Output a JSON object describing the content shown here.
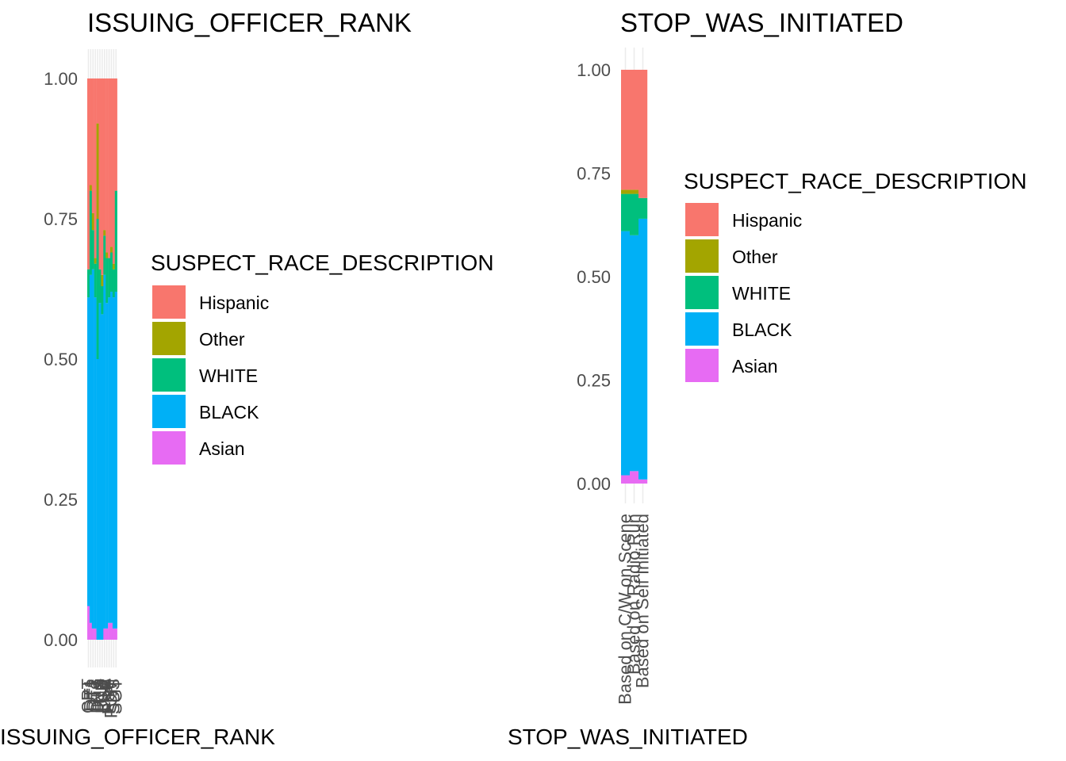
{
  "legend": {
    "title": "SUSPECT_RACE_DESCRIPTION",
    "entries": [
      {
        "label": "Hispanic",
        "color": "#F8766D"
      },
      {
        "label": "Other",
        "color": "#A3A500"
      },
      {
        "label": "WHITE",
        "color": "#00BF7D"
      },
      {
        "label": "BLACK",
        "color": "#00B0F6"
      },
      {
        "label": "Asian",
        "color": "#E76BF3"
      }
    ]
  },
  "chart_data": [
    {
      "type": "bar",
      "stacked": "fill",
      "title": "ISSUING_OFFICER_RANK",
      "xlabel": "ISSUING_OFFICER_RANK",
      "ylabel": "",
      "ylim": [
        0,
        1
      ],
      "yticks": [
        "0.00",
        "0.25",
        "0.50",
        "0.75",
        "1.00"
      ],
      "grid": true,
      "legend_position": "right",
      "categories": [
        "CPT",
        "DT1",
        "DT2",
        "DT3",
        "DTS",
        "INS",
        "LCD",
        "LSA",
        "LT",
        "POF",
        "POM",
        "SDS",
        "SGT"
      ],
      "series": [
        {
          "name": "Asian",
          "values": [
            0.06,
            0.03,
            0.02,
            0.02,
            0.0,
            0.0,
            0.0,
            0.02,
            0.02,
            0.03,
            0.03,
            0.02,
            0.02
          ]
        },
        {
          "name": "BLACK",
          "values": [
            0.55,
            0.62,
            0.64,
            0.59,
            0.5,
            0.6,
            0.58,
            0.63,
            0.58,
            0.58,
            0.59,
            0.59,
            0.6
          ]
        },
        {
          "name": "WHITE",
          "values": [
            0.05,
            0.15,
            0.07,
            0.06,
            0.25,
            0.06,
            0.05,
            0.07,
            0.08,
            0.07,
            0.07,
            0.05,
            0.18
          ]
        },
        {
          "name": "Other",
          "values": [
            0.0,
            0.01,
            0.03,
            0.01,
            0.17,
            0.0,
            0.02,
            0.01,
            0.01,
            0.0,
            0.01,
            0.01,
            0.0
          ]
        },
        {
          "name": "Hispanic",
          "values": [
            0.34,
            0.19,
            0.24,
            0.32,
            0.08,
            0.34,
            0.35,
            0.27,
            0.31,
            0.32,
            0.3,
            0.33,
            0.2
          ]
        }
      ]
    },
    {
      "type": "bar",
      "stacked": "fill",
      "title": "STOP_WAS_INITIATED",
      "xlabel": "STOP_WAS_INITIATED",
      "ylabel": "",
      "ylim": [
        0,
        1
      ],
      "yticks": [
        "0.00",
        "0.25",
        "0.50",
        "0.75",
        "1.00"
      ],
      "grid": true,
      "legend_position": "right",
      "categories": [
        "Based on C/W on Scene",
        "Based on Radio Run",
        "Based on Self Initiated"
      ],
      "series": [
        {
          "name": "Asian",
          "values": [
            0.02,
            0.03,
            0.01
          ]
        },
        {
          "name": "BLACK",
          "values": [
            0.59,
            0.57,
            0.63
          ]
        },
        {
          "name": "WHITE",
          "values": [
            0.09,
            0.1,
            0.05
          ]
        },
        {
          "name": "Other",
          "values": [
            0.01,
            0.01,
            0.0
          ]
        },
        {
          "name": "Hispanic",
          "values": [
            0.29,
            0.29,
            0.31
          ]
        }
      ]
    }
  ]
}
